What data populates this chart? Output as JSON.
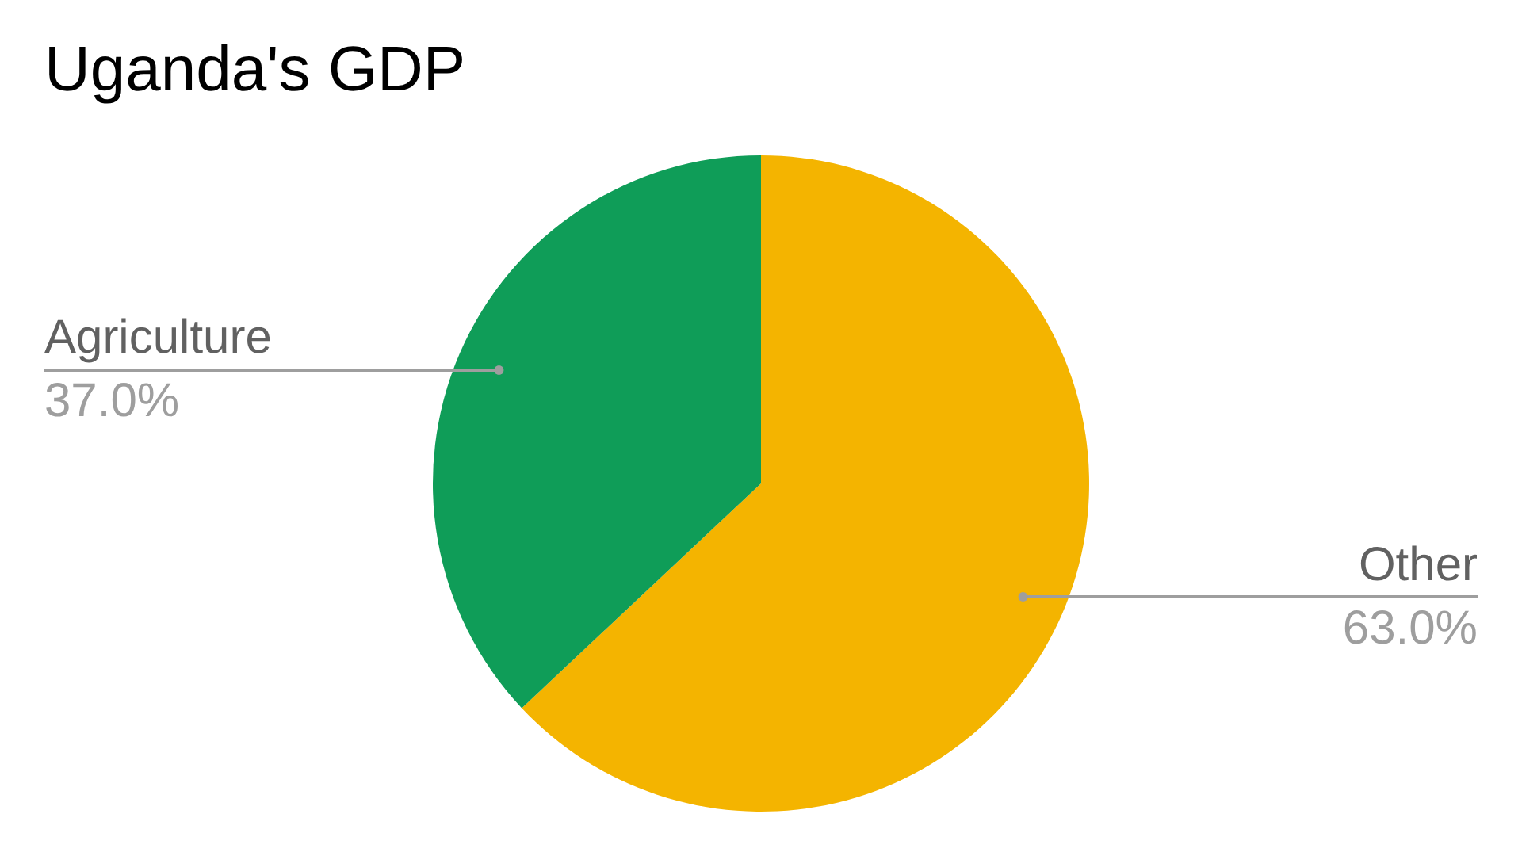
{
  "chart_data": {
    "type": "pie",
    "title": "Uganda's GDP",
    "categories": [
      "Other",
      "Agriculture"
    ],
    "values": [
      63.0,
      37.0
    ],
    "colors": [
      "#f4b400",
      "#0f9d58"
    ],
    "value_labels": [
      "63.0%",
      "37.0%"
    ],
    "legend": false
  }
}
